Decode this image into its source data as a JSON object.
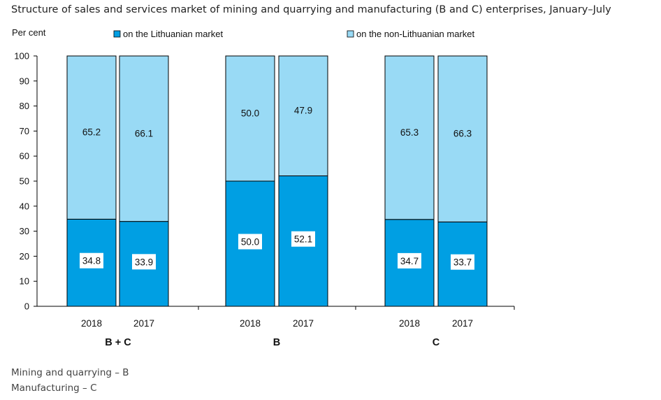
{
  "page": {
    "title": "Structure of sales and services market of mining and quarrying and manufacturing (B and C) enterprises, January–July",
    "footnotes": [
      "Mining and quarrying – B",
      "Manufacturing – C"
    ]
  },
  "colors": {
    "lithuanian": "#009fe3",
    "non_lithuanian": "#99daf5",
    "outline": "#000000"
  },
  "chart_data": {
    "type": "bar",
    "stacked": true,
    "ylabel": "Per cent",
    "ylim": [
      0,
      100
    ],
    "yticks": [
      0,
      10,
      20,
      30,
      40,
      50,
      60,
      70,
      80,
      90,
      100
    ],
    "grid": false,
    "groups": [
      "B + C",
      "B",
      "C"
    ],
    "categories": [
      "2018",
      "2017",
      "2018",
      "2017",
      "2018",
      "2017"
    ],
    "category_group": [
      0,
      0,
      1,
      1,
      2,
      2
    ],
    "series": [
      {
        "name": "on the Lithuanian market",
        "values": [
          34.8,
          33.9,
          50.0,
          52.1,
          34.7,
          33.7
        ],
        "labels": [
          "34.8",
          "33.9",
          "50.0",
          "52.1",
          "34.7",
          "33.7"
        ]
      },
      {
        "name": "on the non-Lithuanian market",
        "values": [
          65.2,
          66.1,
          50.0,
          47.9,
          65.3,
          66.3
        ],
        "labels": [
          "65.2",
          "66.1",
          "50.0",
          "47.9",
          "65.3",
          "66.3"
        ]
      }
    ],
    "legend_position": "top"
  }
}
